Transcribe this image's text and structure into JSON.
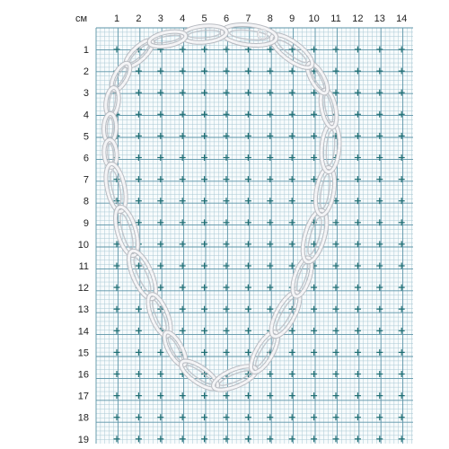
{
  "ruler": {
    "unit_label": "см",
    "x_ticks": [
      "1",
      "2",
      "3",
      "4",
      "5",
      "6",
      "7",
      "8",
      "9",
      "10",
      "11",
      "12",
      "13",
      "14"
    ],
    "y_ticks": [
      "1",
      "2",
      "3",
      "4",
      "5",
      "6",
      "7",
      "8",
      "9",
      "10",
      "11",
      "12",
      "13",
      "14",
      "15",
      "16",
      "17",
      "18",
      "19"
    ]
  },
  "colors": {
    "background": "#ffffff",
    "grid_area": "#f7fbfc",
    "minor_grid": "#a9c8d4",
    "major_grid": "#5e95a8",
    "plus_marker": "#1f6f73",
    "necklace_light": "#f4f4f6",
    "necklace_dark": "#b9bcc2"
  },
  "object": {
    "icon": "silver-oval-link-necklace"
  }
}
